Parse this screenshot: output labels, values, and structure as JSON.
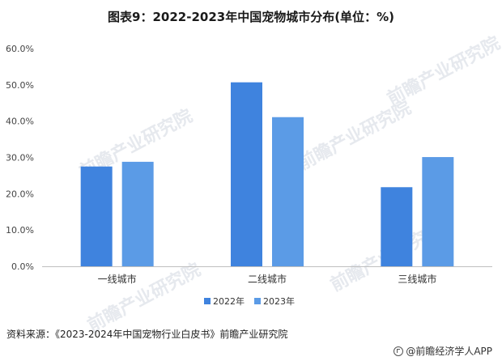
{
  "title": "图表9：2022-2023年中国宠物城市分布(单位：%)",
  "source": "资料来源：《2023-2024年中国宠物行业白皮书》前瞻产业研究院",
  "footer_brand": "@前瞻经济学人APP",
  "watermark_text": "前瞻产业研究院",
  "chart_data": {
    "type": "bar",
    "categories": [
      "一线城市",
      "二线城市",
      "三线城市"
    ],
    "series": [
      {
        "name": "2022年",
        "values": [
          27.5,
          50.7,
          21.8
        ],
        "color": "#3f83de"
      },
      {
        "name": "2023年",
        "values": [
          28.8,
          41.1,
          30.1
        ],
        "color": "#5b9be6"
      }
    ],
    "ylim": [
      0,
      60
    ],
    "yticks": [
      "0.0%",
      "10.0%",
      "20.0%",
      "30.0%",
      "40.0%",
      "50.0%",
      "60.0%"
    ],
    "legend_position": "bottom-center",
    "grid": false
  }
}
